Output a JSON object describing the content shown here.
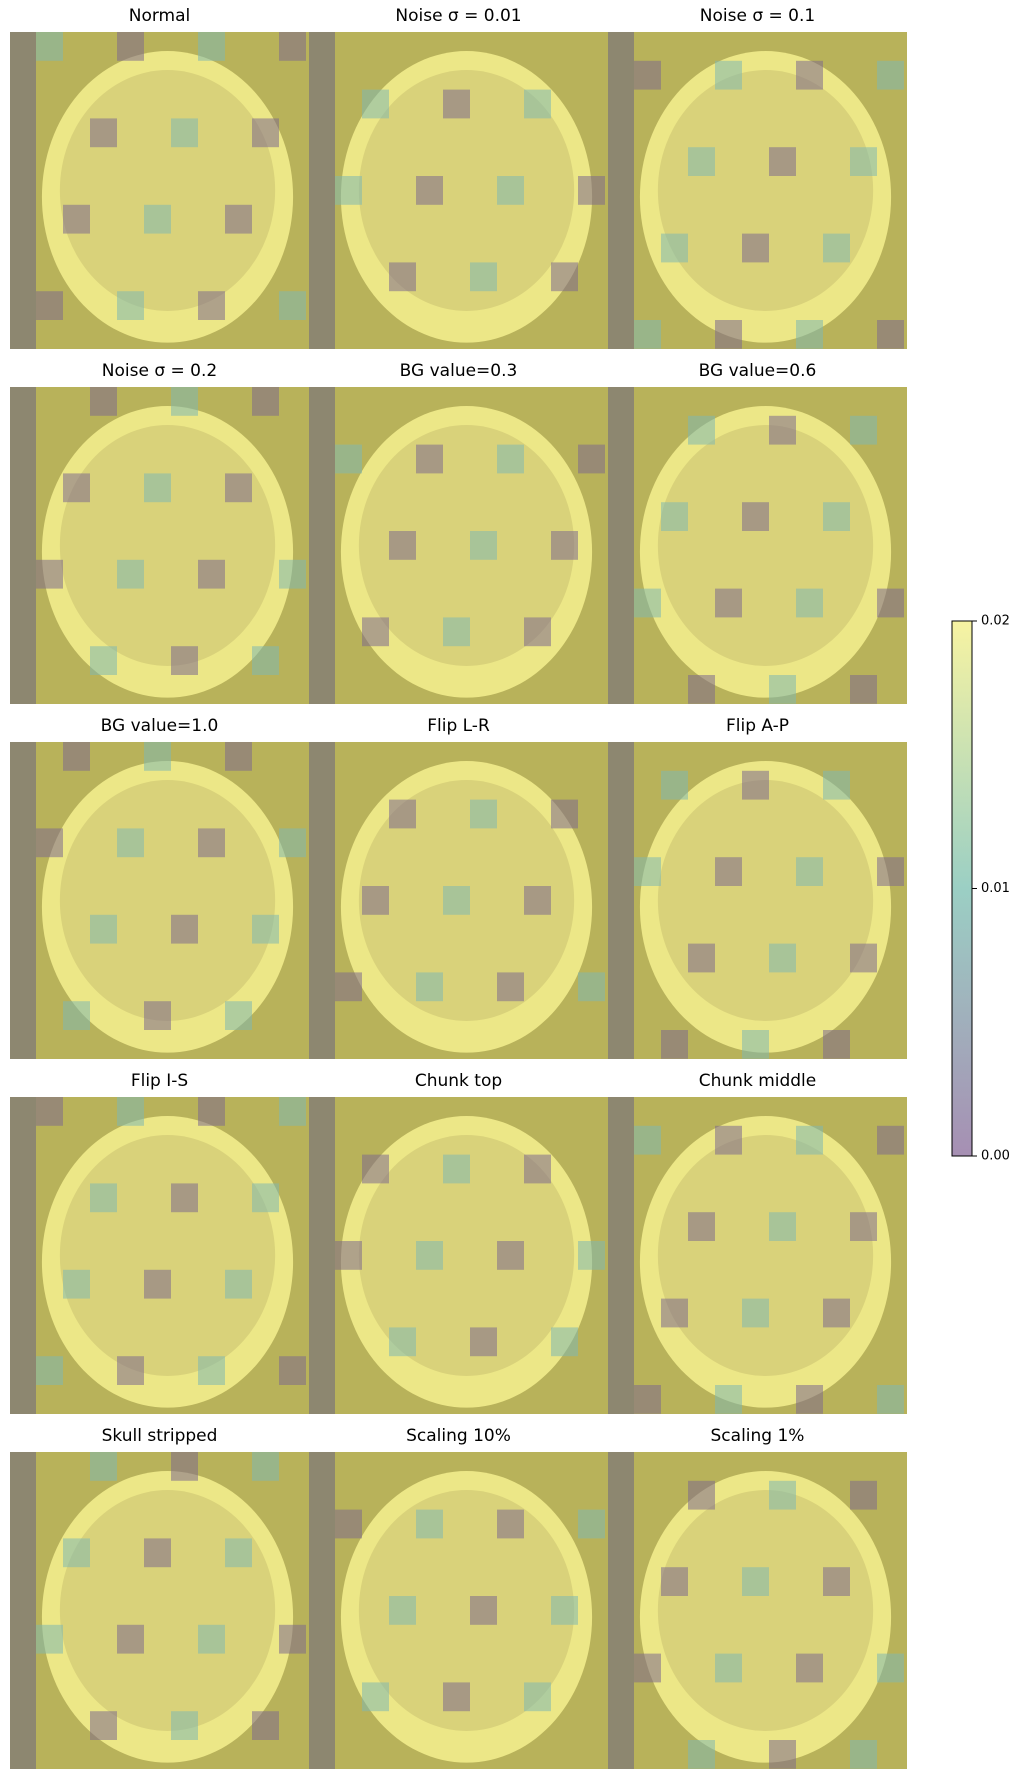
{
  "chart_data": {
    "type": "image-grid",
    "panels": [
      "Normal",
      "Noise σ = 0.01",
      "Noise σ = 0.1",
      "Noise σ = 0.2",
      "BG value=0.3",
      "BG value=0.6",
      "BG value=1.0",
      "Flip L-R",
      "Flip A-P",
      "Flip I-S",
      "Chunk top",
      "Chunk middle",
      "Skull stripped",
      "Scaling 10%",
      "Scaling 1%"
    ],
    "colorbar": {
      "clim": [
        0,
        0.02
      ],
      "ticks": [
        {
          "value": 0,
          "label": "0.00"
        },
        {
          "value": 0.01,
          "label": "0.01"
        },
        {
          "value": 0.02,
          "label": "0.02"
        }
      ],
      "colors": [
        "#a68fb3",
        "#9bcfc4",
        "#f7f3a2"
      ]
    }
  }
}
